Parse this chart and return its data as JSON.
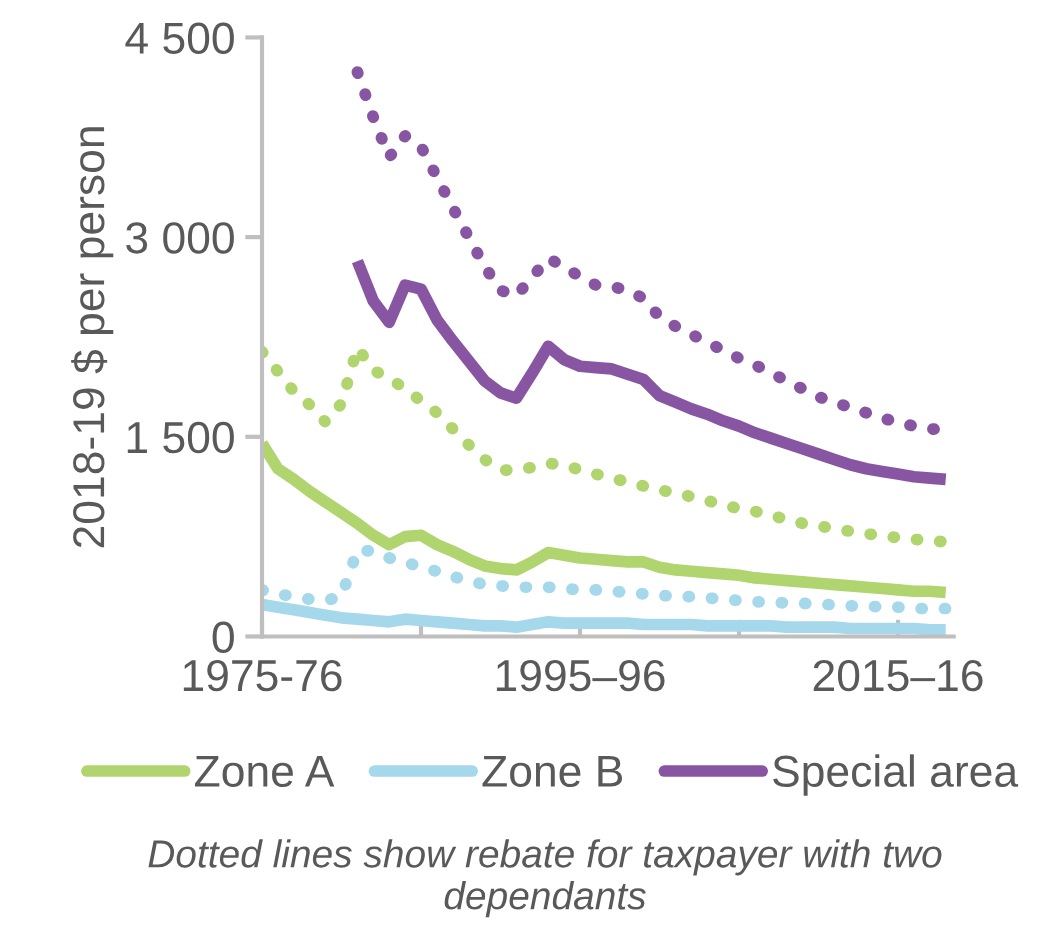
{
  "chart_data": {
    "type": "line",
    "ylabel": "2018-19 $ per person",
    "categories": [
      "1975-76",
      null,
      null,
      null,
      null,
      null,
      null,
      null,
      null,
      null,
      null,
      null,
      null,
      null,
      null,
      null,
      null,
      null,
      null,
      null,
      "1995–96",
      null,
      null,
      null,
      null,
      null,
      null,
      null,
      null,
      null,
      null,
      null,
      null,
      null,
      null,
      null,
      null,
      null,
      null,
      null,
      "2015–16",
      null,
      null,
      null
    ],
    "ylim": [
      0,
      4500
    ],
    "yticks": [
      {
        "value": 0,
        "label": "0"
      },
      {
        "value": 1500,
        "label": "1 500"
      },
      {
        "value": 3000,
        "label": "3 000"
      },
      {
        "value": 4500,
        "label": "4 500"
      }
    ],
    "grid": false,
    "legend": "bottom",
    "marker": "none",
    "series": [
      {
        "name": "Zone A",
        "color": "#b0d56f",
        "line_style": "solid",
        "values": [
          1450,
          1260,
          1180,
          1090,
          1010,
          930,
          850,
          760,
          690,
          750,
          760,
          690,
          640,
          580,
          530,
          510,
          500,
          560,
          630,
          610,
          590,
          580,
          570,
          560,
          560,
          520,
          500,
          490,
          480,
          470,
          460,
          440,
          430,
          420,
          410,
          400,
          390,
          380,
          370,
          360,
          350,
          340,
          340,
          330
        ]
      },
      {
        "name": "Zone B",
        "color": "#a5d8ea",
        "line_style": "solid",
        "values": [
          240,
          220,
          200,
          180,
          160,
          140,
          130,
          120,
          110,
          130,
          120,
          110,
          100,
          90,
          80,
          80,
          70,
          90,
          110,
          100,
          100,
          100,
          100,
          100,
          90,
          90,
          90,
          90,
          80,
          80,
          80,
          80,
          80,
          70,
          70,
          70,
          70,
          60,
          60,
          60,
          60,
          60,
          50,
          50
        ]
      },
      {
        "name": "Special area",
        "color": "#8855a3",
        "line_style": "solid",
        "values": [
          null,
          null,
          null,
          null,
          null,
          null,
          2820,
          2520,
          2360,
          2640,
          2610,
          2380,
          2220,
          2070,
          1920,
          1830,
          1790,
          1980,
          2180,
          2080,
          2030,
          2020,
          2010,
          1970,
          1930,
          1810,
          1760,
          1710,
          1670,
          1620,
          1580,
          1530,
          1490,
          1450,
          1410,
          1370,
          1330,
          1290,
          1260,
          1240,
          1220,
          1200,
          1190,
          1180
        ]
      },
      {
        "color": "#b0d56f",
        "line_style": "dotted",
        "values": [
          2140,
          1990,
          1840,
          1740,
          1610,
          1750,
          2170,
          2000,
          1940,
          1860,
          1770,
          1680,
          1560,
          1440,
          1330,
          1250,
          1250,
          1270,
          1300,
          1290,
          1250,
          1220,
          1190,
          1160,
          1130,
          1100,
          1080,
          1050,
          1020,
          990,
          960,
          940,
          910,
          880,
          850,
          830,
          810,
          790,
          770,
          760,
          740,
          730,
          720,
          710
        ]
      },
      {
        "color": "#a5d8ea",
        "line_style": "dotted",
        "values": [
          350,
          320,
          300,
          280,
          270,
          300,
          650,
          640,
          590,
          560,
          520,
          490,
          450,
          420,
          390,
          380,
          370,
          370,
          370,
          360,
          350,
          350,
          340,
          330,
          320,
          310,
          300,
          300,
          290,
          280,
          270,
          260,
          260,
          250,
          250,
          240,
          240,
          230,
          230,
          220,
          220,
          210,
          210,
          210
        ]
      },
      {
        "color": "#8855a3",
        "line_style": "dotted",
        "values": [
          null,
          null,
          null,
          null,
          null,
          null,
          4240,
          3900,
          3600,
          3760,
          3680,
          3450,
          3220,
          3000,
          2780,
          2600,
          2560,
          2700,
          2840,
          2780,
          2700,
          2640,
          2630,
          2600,
          2540,
          2400,
          2330,
          2270,
          2210,
          2150,
          2090,
          2040,
          1980,
          1920,
          1860,
          1800,
          1760,
          1720,
          1680,
          1640,
          1610,
          1580,
          1560,
          1550
        ]
      }
    ],
    "annotations": [
      "Dotted lines show rebate for taxpayer with two dependants"
    ]
  }
}
